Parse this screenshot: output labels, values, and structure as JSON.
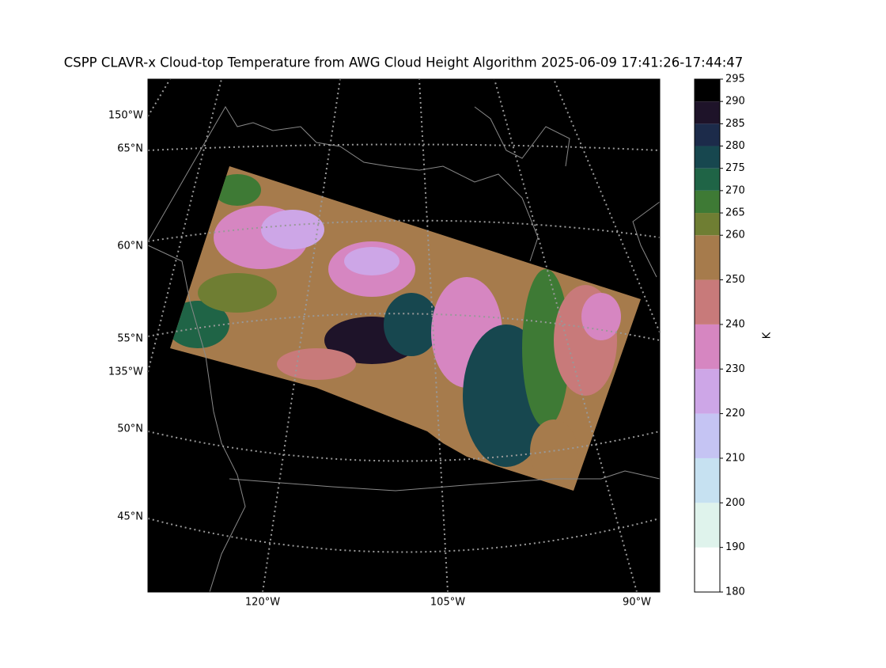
{
  "title": "CSPP CLAVR-x Cloud-top Temperature from AWG Cloud Height Algorithm 2025-06-09 17:41:26-17:44:47",
  "left_labels": [
    "150°W",
    "65°N",
    "60°N",
    "55°N",
    "135°W",
    "50°N",
    "45°N"
  ],
  "bottom_labels": [
    "120°W",
    "105°W",
    "90°W"
  ],
  "colorbar": {
    "label": "K",
    "ticks": [
      180,
      190,
      200,
      210,
      220,
      230,
      240,
      250,
      260,
      265,
      270,
      275,
      280,
      285,
      290,
      295
    ],
    "colors": [
      "#ffffff",
      "#dff3ec",
      "#c6e1f1",
      "#c5c4f3",
      "#cda6e7",
      "#d686c1",
      "#c87a7a",
      "#a67b4c",
      "#6f7e33",
      "#3e7a35",
      "#1f6446",
      "#17474f",
      "#1c2b4a",
      "#1e1329",
      "#000000"
    ]
  }
}
